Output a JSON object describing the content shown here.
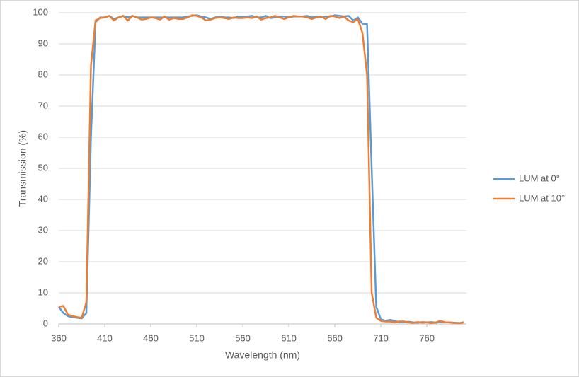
{
  "chart_data": {
    "type": "line",
    "x_label": "Wavelength (nm)",
    "y_label": "Transmission (%)",
    "x": [
      360,
      365,
      370,
      375,
      380,
      385,
      390,
      395,
      400,
      405,
      410,
      415,
      420,
      425,
      430,
      435,
      440,
      445,
      450,
      455,
      460,
      465,
      470,
      475,
      480,
      485,
      490,
      495,
      500,
      505,
      510,
      515,
      520,
      525,
      530,
      535,
      540,
      545,
      550,
      555,
      560,
      565,
      570,
      575,
      580,
      585,
      590,
      595,
      600,
      605,
      610,
      615,
      620,
      625,
      630,
      635,
      640,
      645,
      650,
      655,
      660,
      665,
      670,
      675,
      680,
      685,
      690,
      695,
      700,
      705,
      710,
      715,
      720,
      725,
      730,
      735,
      740,
      745,
      750,
      755,
      760,
      765,
      770,
      775,
      780,
      785,
      790,
      795,
      800
    ],
    "series": [
      {
        "name": "LUM at 0°",
        "color": "#5b9bd5",
        "values": [
          5.5,
          3.5,
          2.5,
          2.2,
          2.0,
          1.8,
          3.5,
          60,
          97,
          98.5,
          98.5,
          99,
          98,
          98.5,
          99,
          98.5,
          99,
          98.5,
          98.5,
          98.5,
          98.5,
          98.5,
          98.5,
          98.5,
          98.5,
          98.5,
          98.5,
          98.5,
          98.8,
          99,
          99.2,
          98.8,
          98.5,
          98,
          98.5,
          98.8,
          98.5,
          98.5,
          98.3,
          98.8,
          98.8,
          98.8,
          99,
          98.5,
          98.5,
          99,
          98.3,
          98.5,
          98.8,
          98.8,
          98.5,
          98.8,
          98.8,
          98.8,
          99,
          98.5,
          98.8,
          98.5,
          98.8,
          98.8,
          99.2,
          99,
          98.8,
          99,
          97.5,
          98.5,
          96.5,
          96.3,
          50,
          5.5,
          1.5,
          1.0,
          1.3,
          1.0,
          0.5,
          0.6,
          0.7,
          0.5,
          0.4,
          0.6,
          0.5,
          0.6,
          0.4,
          0.8,
          0.5,
          0.5,
          0.4,
          0.3,
          0.5
        ]
      },
      {
        "name": "LUM at 10°",
        "color": "#ed7d31",
        "values": [
          5.5,
          5.8,
          3,
          2.5,
          2.2,
          2,
          7,
          83,
          97.5,
          98.3,
          98.5,
          99,
          97.5,
          98.5,
          99,
          97.5,
          99,
          98.5,
          97.8,
          98,
          98.5,
          98.3,
          97.8,
          98.8,
          97.8,
          98.3,
          98,
          98,
          98.5,
          99.2,
          99,
          98.5,
          97.5,
          97.8,
          98.3,
          98.5,
          98.3,
          98,
          98.5,
          98.3,
          98.3,
          98.5,
          98.3,
          98.8,
          97.8,
          98.3,
          98.5,
          99,
          98.5,
          98,
          98.5,
          99,
          98.8,
          98.8,
          98.5,
          98,
          98.5,
          98.8,
          98,
          99,
          98.8,
          98.3,
          98.8,
          97.5,
          97,
          98,
          93.5,
          80,
          10,
          2,
          1,
          0.8,
          0.8,
          0.5,
          0.8,
          0.8,
          0.5,
          0.3,
          0.6,
          0.4,
          0.5,
          0.3,
          0.5,
          1,
          0.5,
          0.5,
          0.3,
          0.2,
          0.5
        ]
      }
    ],
    "xlim": [
      360,
      803
    ],
    "xticks": [
      360,
      410,
      460,
      510,
      560,
      610,
      660,
      710,
      760
    ],
    "ylim": [
      0,
      100
    ],
    "yticks": [
      0,
      10,
      20,
      30,
      40,
      50,
      60,
      70,
      80,
      90,
      100
    ],
    "grid": true,
    "legend": "right"
  }
}
